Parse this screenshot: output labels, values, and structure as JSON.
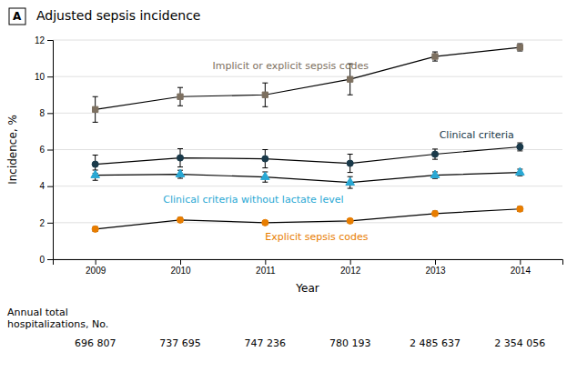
{
  "chart_data": {
    "type": "line",
    "panel_label": "A",
    "title": "Adjusted sepsis incidence",
    "xlabel": "Year",
    "ylabel": "Incidence, %",
    "x": [
      2009,
      2010,
      2011,
      2012,
      2013,
      2014
    ],
    "xlim": [
      2008.5,
      2014.5
    ],
    "xticks": [
      2009,
      2010,
      2011,
      2012,
      2013,
      2014
    ],
    "ylim": [
      0,
      12
    ],
    "yticks": [
      0,
      2,
      4,
      6,
      8,
      10,
      12
    ],
    "grid": true,
    "series": [
      {
        "color": "#7d7060",
        "marker": "square",
        "values": [
          8.2,
          8.9,
          9.0,
          9.85,
          11.1,
          11.6
        ],
        "errors": [
          0.7,
          0.5,
          0.65,
          0.85,
          0.25,
          0.2
        ]
      },
      {
        "color": "#1a3a4a",
        "marker": "circle",
        "values": [
          5.2,
          5.55,
          5.5,
          5.25,
          5.75,
          6.15
        ],
        "errors": [
          0.5,
          0.5,
          0.5,
          0.5,
          0.28,
          0.22
        ]
      },
      {
        "color": "#29a8d4",
        "marker": "triangle",
        "values": [
          4.6,
          4.65,
          4.5,
          4.2,
          4.6,
          4.75
        ],
        "errors": [
          0.28,
          0.22,
          0.28,
          0.32,
          0.18,
          0.18
        ]
      },
      {
        "color": "#e87d00",
        "marker": "circle",
        "values": [
          1.65,
          2.15,
          2.0,
          2.1,
          2.5,
          2.75
        ],
        "errors": [
          0.13,
          0.13,
          0.1,
          0.1,
          0.13,
          0.13
        ]
      }
    ],
    "annotations": [
      {
        "text": "Implicit or explicit sepsis codes",
        "x": 2011.3,
        "y": 10.3,
        "color": "#7d7060"
      },
      {
        "text": "Clinical criteria",
        "x": 2013.05,
        "y": 6.5,
        "color": "#1a3a4a"
      },
      {
        "text": "Clinical criteria without lactate level",
        "x": 2009.8,
        "y": 3.6,
        "color": "#29a8d4"
      },
      {
        "text": "Explicit sepsis codes",
        "x": 2011.0,
        "y": 1.55,
        "color": "#e87d00"
      }
    ],
    "hospitalizations": {
      "title": [
        "Annual total",
        "hospitalizations, No."
      ],
      "values": [
        696807,
        737695,
        747236,
        780193,
        2485637,
        2354056
      ],
      "value_labels": [
        "696 807",
        "737 695",
        "747 236",
        "780 193",
        "2 485 637",
        "2 354 056"
      ]
    }
  }
}
